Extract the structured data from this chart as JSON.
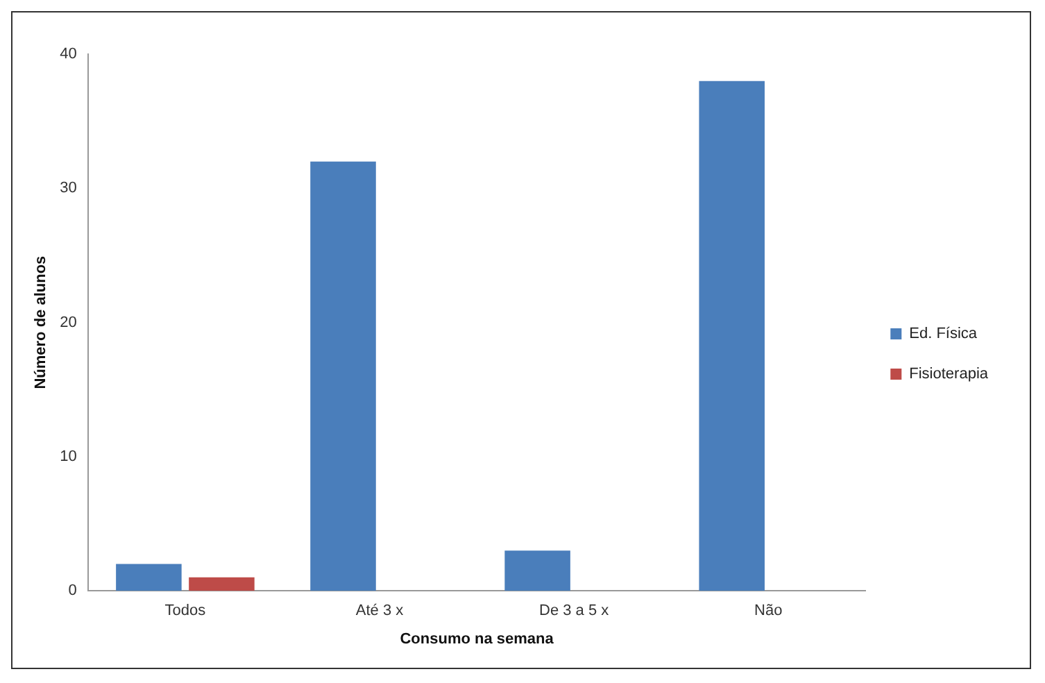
{
  "chart_data": {
    "type": "bar",
    "xlabel": "Consumo na semana",
    "ylabel": "Número de alunos",
    "categories": [
      "Todos",
      "Até 3 x",
      "De 3 a 5 x",
      "Não"
    ],
    "series": [
      {
        "name": "Ed. Física",
        "color": "#4a7ebb",
        "values": [
          2,
          32,
          3,
          38
        ]
      },
      {
        "name": "Fisioterapia",
        "color": "#be4b48",
        "values": [
          1,
          0,
          0,
          0
        ]
      }
    ],
    "ylim": [
      0,
      40
    ],
    "yticks": [
      0,
      10,
      20,
      30,
      40
    ],
    "grid": false,
    "legend": "right"
  }
}
